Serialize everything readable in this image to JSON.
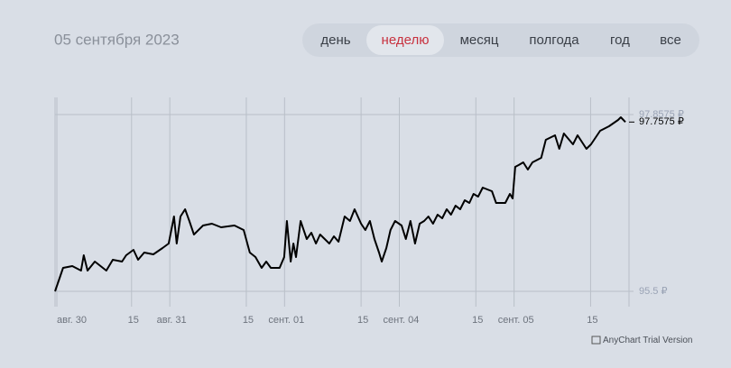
{
  "header": {
    "date": "05 сентября 2023"
  },
  "tabs": [
    "день",
    "неделю",
    "месяц",
    "полгода",
    "год",
    "все"
  ],
  "selected_tab": 1,
  "chart_data": {
    "type": "line",
    "x": [
      0,
      2.1,
      4.5,
      6.8,
      7.5,
      8.5,
      10.4,
      13.4,
      15.1,
      17.5,
      18.6,
      20.5,
      21.7,
      23.3,
      25.7,
      28.1,
      29.7,
      31.1,
      31.8,
      32.8,
      34.0,
      35.1,
      36.3,
      38.7,
      41.0,
      43.4,
      46.9,
      49.3,
      50.9,
      52.4,
      54.0,
      55.2,
      56.4,
      58.7,
      59.9,
      60.6,
      61.6,
      62.3,
      63.0,
      64.2,
      65.8,
      67.0,
      68.2,
      69.3,
      71.7,
      72.9,
      74.1,
      75.7,
      77.1,
      78.3,
      80.0,
      81.1,
      82.3,
      83.5,
      84.7,
      85.4,
      86.6,
      87.7,
      88.9,
      90.6,
      91.7,
      92.9,
      94.1,
      95.3,
      96.5,
      97.6,
      98.8,
      100.0,
      101.2,
      102.4,
      103.5,
      104.7,
      105.9,
      107.1,
      108.3,
      109.4,
      110.6,
      111.8,
      114.2,
      115.3,
      117.7,
      118.9,
      119.6,
      120.3,
      121.2,
      122.4,
      123.6,
      124.8,
      127.1,
      128.3,
      130.7,
      131.8,
      133.0,
      135.4,
      136.6,
      138.9,
      140.1,
      142.5,
      144.8,
      147.2,
      147.9,
      149.1
    ],
    "values": [
      95.5,
      95.813,
      95.837,
      95.777,
      95.981,
      95.777,
      95.897,
      95.777,
      95.921,
      95.897,
      95.981,
      96.053,
      95.921,
      96.017,
      95.993,
      96.077,
      96.137,
      96.498,
      96.137,
      96.498,
      96.595,
      96.438,
      96.258,
      96.378,
      96.402,
      96.354,
      96.378,
      96.318,
      96.017,
      95.957,
      95.813,
      95.897,
      95.813,
      95.813,
      95.957,
      96.438,
      95.897,
      96.137,
      95.957,
      96.438,
      96.198,
      96.282,
      96.137,
      96.258,
      96.137,
      96.234,
      96.162,
      96.498,
      96.438,
      96.595,
      96.402,
      96.318,
      96.438,
      96.198,
      96.017,
      95.897,
      96.077,
      96.318,
      96.438,
      96.378,
      96.198,
      96.438,
      96.137,
      96.402,
      96.438,
      96.498,
      96.402,
      96.522,
      96.474,
      96.595,
      96.522,
      96.643,
      96.595,
      96.715,
      96.679,
      96.799,
      96.763,
      96.883,
      96.835,
      96.679,
      96.679,
      96.799,
      96.739,
      97.16,
      97.184,
      97.22,
      97.124,
      97.22,
      97.28,
      97.521,
      97.581,
      97.4,
      97.605,
      97.461,
      97.581,
      97.4,
      97.461,
      97.641,
      97.701,
      97.785,
      97.821,
      97.7575
    ],
    "color": "#000000",
    "xlim": [
      0,
      149.1
    ],
    "xticks": [
      {
        "value": 0,
        "label": "авг. 30"
      },
      {
        "value": 20,
        "label": "15"
      },
      {
        "value": 30,
        "label": "авг. 31"
      },
      {
        "value": 50,
        "label": "15"
      },
      {
        "value": 60,
        "label": "сент. 01"
      },
      {
        "value": 80,
        "label": "15"
      },
      {
        "value": 90,
        "label": "сент. 04"
      },
      {
        "value": 110,
        "label": "15"
      },
      {
        "value": 120,
        "label": "сент. 05"
      },
      {
        "value": 140,
        "label": "15"
      }
    ],
    "ylim": [
      95.5,
      97.8575
    ],
    "yticks": [
      {
        "value": 95.5,
        "label": "95.5 ₽"
      },
      {
        "value": 97.8575,
        "label": "97.8575 ₽"
      }
    ],
    "last_value": {
      "value": 97.7575,
      "label": "97.7575 ₽"
    },
    "grid": true,
    "watermark": "AnyChart Trial Version"
  }
}
